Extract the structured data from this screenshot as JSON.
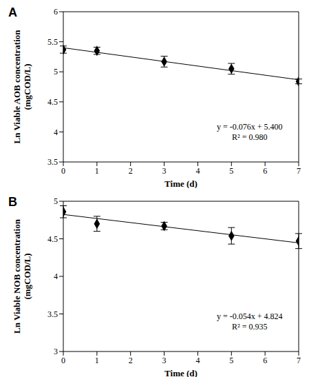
{
  "chart_data": [
    {
      "type": "scatter",
      "title": "A",
      "x_label": "Time (d)",
      "y_label": "Ln Viable AOB concentration (mgCOD/L)",
      "x": [
        0,
        1,
        3,
        5,
        7
      ],
      "values": [
        5.37,
        5.35,
        5.17,
        5.05,
        4.84
      ],
      "errors": [
        0.06,
        0.06,
        0.09,
        0.09,
        0.04
      ],
      "xlim": [
        0,
        7
      ],
      "xticks": [
        0,
        1,
        2,
        3,
        4,
        5,
        6,
        7
      ],
      "ylim": [
        3.5,
        6
      ],
      "yticks": [
        3.5,
        4,
        4.5,
        5,
        5.5,
        6
      ],
      "trendline": {
        "slope": -0.076,
        "intercept": 5.4
      },
      "annotations": [
        "y = -0.076x + 5.400",
        "R² = 0.980"
      ],
      "color": "#000000",
      "marker": "diamond"
    },
    {
      "type": "scatter",
      "title": "B",
      "x_label": "Time (d)",
      "y_label": "Ln Viable NOB concentration (mgCOD/L)",
      "x": [
        0,
        1,
        3,
        5,
        7
      ],
      "values": [
        4.86,
        4.7,
        4.67,
        4.54,
        4.47
      ],
      "errors": [
        0.08,
        0.1,
        0.05,
        0.11,
        0.1
      ],
      "xlim": [
        0,
        7
      ],
      "xticks": [
        0,
        1,
        2,
        3,
        4,
        5,
        6,
        7
      ],
      "ylim": [
        3,
        5
      ],
      "yticks": [
        3,
        3.5,
        4,
        4.5,
        5
      ],
      "trendline": {
        "slope": -0.054,
        "intercept": 4.824
      },
      "annotations": [
        "y = -0.054x + 4.824",
        "R² = 0.935"
      ],
      "color": "#000000",
      "marker": "diamond"
    }
  ]
}
